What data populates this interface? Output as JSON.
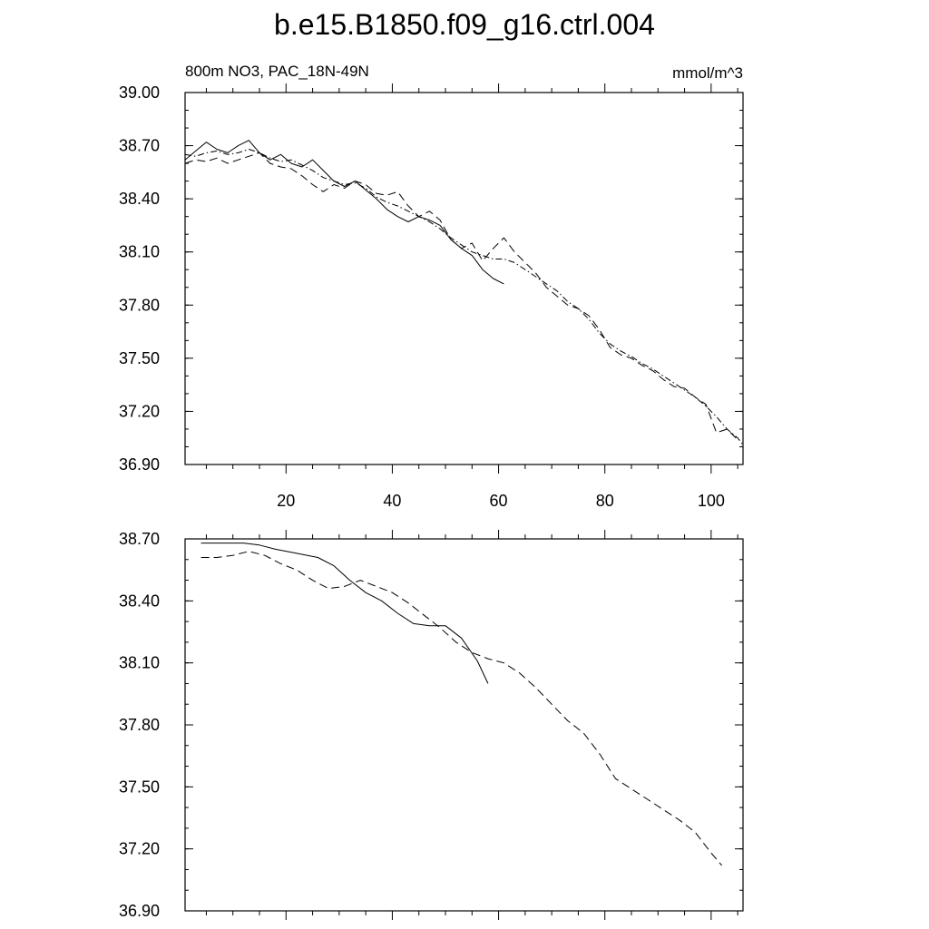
{
  "title": "b.e15.B1850.f09_g16.ctrl.004",
  "chart_data": [
    {
      "type": "line",
      "left_label": "800m NO3, PAC_18N-49N",
      "right_label": "mmol/m^3",
      "xlim": [
        1,
        106
      ],
      "ylim": [
        36.9,
        39.0
      ],
      "x_ticks": [
        20,
        40,
        60,
        80,
        100
      ],
      "x_tick_labels": [
        "20",
        "40",
        "60",
        "80",
        "100"
      ],
      "y_ticks": [
        36.9,
        37.2,
        37.5,
        37.8,
        38.1,
        38.4,
        38.7,
        39.0
      ],
      "y_tick_labels": [
        "36.90",
        "37.20",
        "37.50",
        "37.80",
        "38.10",
        "38.40",
        "38.70",
        "39.00"
      ],
      "series": [
        {
          "dash": "solid",
          "x": [
            1,
            3,
            5,
            7,
            9,
            11,
            13,
            15,
            17,
            19,
            21,
            23,
            25,
            27,
            29,
            31,
            33,
            35,
            37,
            39,
            41,
            43,
            45,
            47,
            49,
            51,
            53,
            55,
            57,
            59,
            61
          ],
          "y": [
            38.62,
            38.67,
            38.72,
            38.68,
            38.66,
            38.7,
            38.73,
            38.66,
            38.62,
            38.65,
            38.6,
            38.58,
            38.62,
            38.56,
            38.5,
            38.47,
            38.5,
            38.45,
            38.4,
            38.34,
            38.3,
            38.27,
            38.3,
            38.28,
            38.25,
            38.17,
            38.12,
            38.08,
            38.0,
            37.95,
            37.92
          ]
        },
        {
          "dash": "long",
          "x": [
            1,
            3,
            5,
            7,
            9,
            11,
            13,
            15,
            17,
            19,
            21,
            23,
            25,
            27,
            29,
            31,
            33,
            35,
            37,
            39,
            41,
            43,
            45,
            47,
            49,
            51,
            53,
            55,
            57,
            59,
            61,
            63,
            65,
            67,
            69,
            71,
            73,
            75,
            77,
            79,
            81,
            83,
            85,
            87,
            89,
            91,
            93,
            95,
            97,
            99,
            101,
            103,
            105
          ],
          "y": [
            38.6,
            38.62,
            38.61,
            38.63,
            38.6,
            38.62,
            38.64,
            38.66,
            38.6,
            38.58,
            38.57,
            38.53,
            38.48,
            38.44,
            38.48,
            38.46,
            38.5,
            38.48,
            38.43,
            38.42,
            38.44,
            38.36,
            38.3,
            38.33,
            38.28,
            38.17,
            38.12,
            38.15,
            38.05,
            38.12,
            38.18,
            38.1,
            38.04,
            37.98,
            37.9,
            37.85,
            37.8,
            37.78,
            37.74,
            37.66,
            37.56,
            37.52,
            37.5,
            37.46,
            37.43,
            37.38,
            37.34,
            37.33,
            37.28,
            37.24,
            37.08,
            37.1,
            37.04
          ]
        },
        {
          "dash": "dashdot",
          "x": [
            1,
            3,
            5,
            7,
            9,
            11,
            13,
            15,
            17,
            19,
            21,
            23,
            25,
            27,
            29,
            31,
            33,
            35,
            37,
            39,
            41,
            43,
            45,
            47,
            49,
            51,
            53,
            55,
            57,
            59,
            61,
            63,
            65,
            67,
            69,
            71,
            73,
            75,
            77,
            79,
            81,
            83,
            85,
            87,
            89,
            91,
            93,
            95,
            97,
            99,
            101,
            103,
            105,
            106
          ],
          "y": [
            38.65,
            38.64,
            38.66,
            38.67,
            38.65,
            38.66,
            38.68,
            38.66,
            38.63,
            38.61,
            38.62,
            38.59,
            38.56,
            38.52,
            38.5,
            38.48,
            38.49,
            38.46,
            38.41,
            38.38,
            38.36,
            38.33,
            38.3,
            38.27,
            38.23,
            38.18,
            38.14,
            38.1,
            38.08,
            38.06,
            38.06,
            38.04,
            38.0,
            37.96,
            37.92,
            37.88,
            37.82,
            37.78,
            37.72,
            37.64,
            37.58,
            37.54,
            37.51,
            37.47,
            37.44,
            37.4,
            37.36,
            37.32,
            37.28,
            37.23,
            37.17,
            37.1,
            37.05,
            37.01
          ]
        }
      ]
    },
    {
      "type": "line",
      "xlim": [
        1,
        106
      ],
      "ylim": [
        36.9,
        38.7
      ],
      "x_ticks": [
        20,
        40,
        60,
        80,
        100
      ],
      "y_ticks": [
        36.9,
        37.2,
        37.5,
        37.8,
        38.1,
        38.4,
        38.7
      ],
      "y_tick_labels": [
        "36.90",
        "37.20",
        "37.50",
        "37.80",
        "38.10",
        "38.40",
        "38.70"
      ],
      "series": [
        {
          "dash": "solid",
          "x": [
            4,
            8,
            12,
            15,
            18,
            22,
            26,
            29,
            32,
            35,
            38,
            41,
            44,
            47,
            50,
            53,
            56,
            58
          ],
          "y": [
            38.68,
            38.68,
            38.68,
            38.67,
            38.65,
            38.63,
            38.61,
            38.57,
            38.5,
            38.44,
            38.4,
            38.34,
            38.29,
            38.28,
            38.28,
            38.22,
            38.11,
            38.0
          ]
        },
        {
          "dash": "long",
          "x": [
            4,
            7,
            10,
            13,
            16,
            19,
            22,
            25,
            28,
            31,
            34,
            37,
            40,
            43,
            46,
            49,
            52,
            55,
            58,
            61,
            64,
            67,
            70,
            73,
            76,
            79,
            82,
            85,
            88,
            91,
            94,
            97,
            100,
            102
          ],
          "y": [
            38.61,
            38.61,
            38.62,
            38.64,
            38.62,
            38.58,
            38.55,
            38.5,
            38.46,
            38.47,
            38.5,
            38.47,
            38.44,
            38.39,
            38.33,
            38.27,
            38.2,
            38.15,
            38.12,
            38.1,
            38.05,
            37.98,
            37.9,
            37.82,
            37.76,
            37.66,
            37.54,
            37.49,
            37.44,
            37.39,
            37.34,
            37.28,
            37.18,
            37.12
          ]
        }
      ]
    }
  ]
}
